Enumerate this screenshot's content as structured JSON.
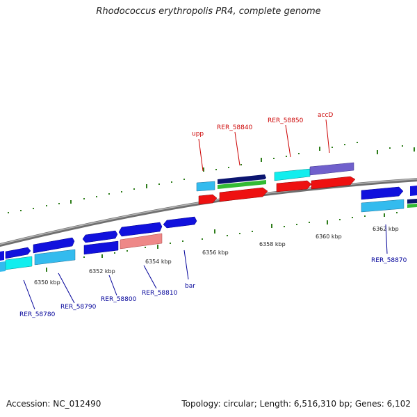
{
  "title": "Rhodococcus erythropolis PR4, complete genome",
  "footer": {
    "accession": "Accession: NC_012490",
    "summary": "Topology: circular; Length: 6,516,310 bp; Genes: 6,102"
  },
  "colors": {
    "backbone": "#8a8a8a",
    "tick": "#2e7d1a",
    "top_label": "#cc0000",
    "bottom_label": "#000099"
  },
  "ticks": [
    {
      "text": "6350 kbp"
    },
    {
      "text": "6352 kbp"
    },
    {
      "text": "6354 kbp"
    },
    {
      "text": "6356 kbp"
    },
    {
      "text": "6358 kbp"
    },
    {
      "text": "6360 kbp"
    },
    {
      "text": "6362 kbp"
    }
  ],
  "top_labels": [
    "upp",
    "RER_58840",
    "RER_58850",
    "accD"
  ],
  "bottom_labels": [
    "RER_58780",
    "RER_58790",
    "RER_58800",
    "RER_58810",
    "bar",
    "RER_58870"
  ]
}
